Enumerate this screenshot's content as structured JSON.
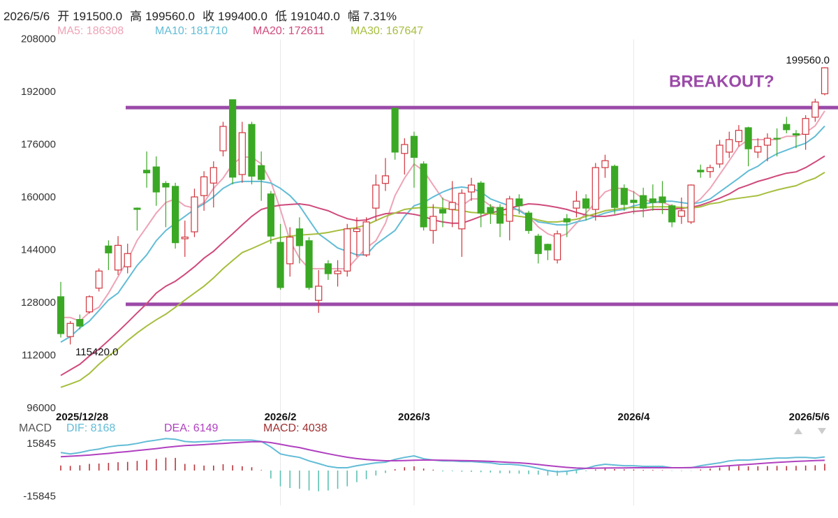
{
  "header": {
    "date": "2026/5/6",
    "items": [
      {
        "label": "开",
        "value": "191500.0"
      },
      {
        "label": "高",
        "value": "199560.0"
      },
      {
        "label": "收",
        "value": "199400.0"
      },
      {
        "label": "低",
        "value": "191040.0"
      },
      {
        "label": "幅",
        "value": "7.31%"
      }
    ]
  },
  "chart_data": [
    {
      "type": "candlestick",
      "categories": [
        "2025/12/28",
        null,
        null,
        null,
        null,
        null,
        null,
        null,
        null,
        null,
        null,
        null,
        null,
        null,
        null,
        null,
        null,
        null,
        null,
        null,
        null,
        null,
        null,
        "2026/2",
        null,
        null,
        null,
        null,
        null,
        null,
        null,
        null,
        null,
        null,
        null,
        null,
        null,
        "2026/3",
        null,
        null,
        null,
        null,
        null,
        null,
        null,
        null,
        null,
        null,
        null,
        null,
        null,
        null,
        null,
        null,
        null,
        null,
        null,
        null,
        null,
        null,
        "2026/4",
        null,
        null,
        null,
        null,
        null,
        null,
        null,
        null,
        null,
        null,
        null,
        null,
        null,
        null,
        null,
        null,
        null,
        null,
        null,
        "2026/5/6"
      ],
      "open": [
        129900,
        117800,
        123000,
        125300,
        132500,
        145300,
        138000,
        139000,
        156800,
        168300,
        169300,
        164300,
        163400,
        147500,
        149600,
        160600,
        164400,
        174200,
        189700,
        167000,
        182200,
        169700,
        161100,
        146400,
        139900,
        150500,
        146900,
        128800,
        139900,
        136900,
        137700,
        149700,
        142600,
        156800,
        164300,
        187100,
        173400,
        178600,
        170200,
        150000,
        156400,
        156400,
        150500,
        161700,
        164400,
        157000,
        157000,
        152800,
        159600,
        155300,
        148300,
        145800,
        141100,
        153600,
        156800,
        159600,
        156400,
        169100,
        169500,
        162800,
        159200,
        160600,
        159600,
        160200,
        157500,
        154300,
        152600,
        168300,
        167900,
        170200,
        173800,
        177000,
        181200,
        173800,
        175900,
        178000,
        182200,
        179400,
        179200,
        184400,
        191500
      ],
      "high": [
        134400,
        122500,
        124500,
        130300,
        138500,
        147000,
        148300,
        146000,
        157000,
        174000,
        172500,
        165000,
        164500,
        153000,
        162700,
        168000,
        171000,
        183000,
        189800,
        183000,
        183000,
        174000,
        162000,
        152000,
        151000,
        154000,
        148000,
        138000,
        141000,
        141000,
        152000,
        154000,
        154000,
        167000,
        172000,
        187300,
        178000,
        180000,
        171000,
        158000,
        160000,
        165000,
        162500,
        166000,
        165000,
        158000,
        158000,
        160500,
        161000,
        156000,
        149000,
        146000,
        150000,
        155000,
        162000,
        161000,
        170500,
        173000,
        170000,
        164000,
        162000,
        163000,
        164000,
        165000,
        158000,
        160000,
        164000,
        170000,
        170000,
        177500,
        180000,
        182000,
        181500,
        178000,
        179500,
        181000,
        184500,
        180500,
        185000,
        190000,
        199560
      ],
      "low": [
        117500,
        115420,
        120000,
        124800,
        131500,
        138000,
        136500,
        137000,
        150000,
        163000,
        157500,
        151000,
        144500,
        142000,
        148000,
        156000,
        157000,
        172500,
        164000,
        164500,
        164000,
        159000,
        146000,
        132000,
        136000,
        140000,
        132000,
        125000,
        135000,
        133000,
        136000,
        142000,
        142000,
        153000,
        162000,
        171500,
        167000,
        163000,
        150000,
        146000,
        151000,
        151000,
        142000,
        159000,
        151000,
        152000,
        148000,
        147000,
        155000,
        149000,
        140000,
        141000,
        140000,
        148000,
        154000,
        153000,
        153000,
        166000,
        155000,
        156000,
        155000,
        154000,
        156000,
        155000,
        151000,
        152000,
        152000,
        166000,
        166000,
        169000,
        172000,
        175500,
        169500,
        172000,
        171000,
        172500,
        179500,
        175000,
        174500,
        183000,
        191040
      ],
      "close": [
        118700,
        121800,
        121000,
        129900,
        137700,
        143200,
        145500,
        143000,
        156400,
        167500,
        161700,
        163200,
        146300,
        148000,
        160200,
        166300,
        169100,
        181600,
        166200,
        179700,
        166500,
        165500,
        148300,
        132700,
        148000,
        145400,
        132700,
        133100,
        136900,
        137700,
        150500,
        150500,
        152600,
        163800,
        166600,
        173800,
        176100,
        172200,
        151100,
        154300,
        155300,
        158500,
        161300,
        163800,
        155300,
        155300,
        152200,
        159600,
        157500,
        150000,
        143000,
        144100,
        149000,
        152600,
        158900,
        156800,
        169100,
        171200,
        157000,
        157900,
        158500,
        156800,
        158500,
        158500,
        152600,
        156000,
        163800,
        167800,
        169100,
        175900,
        177600,
        180400,
        174800,
        175500,
        178000,
        177800,
        180600,
        179000,
        184000,
        189000,
        199400
      ],
      "up_color": "#d0343c",
      "down_color": "#3aa824",
      "ylim": [
        96000,
        208000
      ],
      "yticks": [
        208000,
        192000,
        176000,
        160000,
        144000,
        128000,
        112000,
        96000
      ],
      "xgrid": true,
      "series": [
        {
          "label": "MA5: 186308",
          "color": "#eea3b6",
          "values": [
            123600,
            123600,
            122500,
            125200,
            126700,
            131000,
            136000,
            141000,
            147000,
            151100,
            155300,
            158500,
            159600,
            157500,
            156800,
            158500,
            162800,
            165900,
            170200,
            172300,
            172300,
            170200,
            164900,
            156400,
            146900,
            141600,
            138400,
            138400,
            138400,
            138400,
            138400,
            141600,
            144700,
            146900,
            152200,
            160600,
            165900,
            170200,
            168100,
            163800,
            159600,
            158500,
            157500,
            159600,
            159600,
            157500,
            156400,
            156400,
            156400,
            154300,
            151100,
            149000,
            147900,
            149000,
            152200,
            155300,
            158500,
            161700,
            162800,
            162800,
            161700,
            159600,
            158500,
            158500,
            157500,
            156400,
            157500,
            159600,
            162800,
            167000,
            171200,
            175500,
            177600,
            177600,
            177600,
            177600,
            178600,
            178600,
            179700,
            181800,
            186308
          ]
        },
        {
          "label": "MA10: 181710",
          "color": "#62bcd6",
          "values": [
            116100,
            117800,
            120400,
            122500,
            125700,
            128900,
            131000,
            135200,
            139400,
            142600,
            146900,
            150000,
            152200,
            154300,
            156400,
            158100,
            160200,
            162800,
            164400,
            164900,
            164900,
            164900,
            164400,
            162800,
            160600,
            157500,
            153200,
            149000,
            146900,
            144700,
            143700,
            142600,
            142600,
            145800,
            147900,
            150000,
            154300,
            157500,
            158500,
            160200,
            161700,
            162800,
            163200,
            162800,
            161700,
            159600,
            158500,
            157500,
            156000,
            154300,
            152600,
            152200,
            151700,
            151700,
            152600,
            153200,
            154300,
            155300,
            156000,
            156400,
            157500,
            158100,
            158500,
            158900,
            158900,
            158500,
            158100,
            158500,
            159600,
            161700,
            163800,
            165900,
            168100,
            169500,
            171700,
            173300,
            174400,
            175500,
            176500,
            178600,
            181710
          ]
        },
        {
          "label": "MA20: 172611",
          "color": "#cf4a7c",
          "values": [
            106000,
            107700,
            109400,
            111900,
            114000,
            116600,
            119300,
            122100,
            125000,
            127800,
            131000,
            133100,
            134600,
            136700,
            139000,
            141600,
            143700,
            146400,
            149000,
            151700,
            154300,
            156400,
            157200,
            157700,
            157900,
            158100,
            157700,
            156800,
            156000,
            154700,
            153600,
            153000,
            153200,
            154300,
            155100,
            155300,
            155300,
            154900,
            154300,
            153200,
            152600,
            152200,
            152200,
            153200,
            154300,
            155300,
            156000,
            156800,
            157500,
            158100,
            157900,
            157500,
            157000,
            156400,
            155500,
            154700,
            154300,
            154300,
            154700,
            155300,
            155800,
            156000,
            156400,
            156400,
            156400,
            156800,
            157000,
            157700,
            158700,
            159800,
            161100,
            162800,
            163800,
            164900,
            165700,
            166600,
            167400,
            167800,
            169100,
            170800,
            172611
          ]
        },
        {
          "label": "MA30: 167647",
          "color": "#a6be3e",
          "values": [
            102400,
            103400,
            104500,
            106600,
            109400,
            111900,
            114000,
            116600,
            118900,
            121000,
            122900,
            124600,
            126700,
            128900,
            131000,
            133100,
            135600,
            138400,
            140900,
            143300,
            144500,
            145800,
            147100,
            147900,
            148300,
            148600,
            148800,
            149000,
            149400,
            150000,
            150500,
            150900,
            151700,
            153000,
            154300,
            155300,
            156400,
            156800,
            157000,
            157000,
            156800,
            156400,
            156000,
            155500,
            155300,
            155100,
            154900,
            154700,
            154300,
            153900,
            153200,
            152600,
            152600,
            153000,
            153400,
            154300,
            155100,
            156000,
            156400,
            156800,
            157000,
            157000,
            157200,
            157200,
            157200,
            157000,
            156800,
            157200,
            158100,
            158500,
            159400,
            159800,
            160200,
            160600,
            161500,
            162300,
            163000,
            163600,
            164900,
            165900,
            167647
          ]
        }
      ],
      "hlines": [
        {
          "value": 187300,
          "color": "#9b4aa8"
        },
        {
          "value": 127600,
          "color": "#9b4aa8"
        }
      ],
      "annotations": [
        "BREAKOUT?",
        "199560.0",
        "115420.0"
      ]
    },
    {
      "type": "macd",
      "title": "MACD",
      "ylim": [
        -21000,
        21000
      ],
      "yticks": [
        15845,
        -15845
      ],
      "series": [
        {
          "label": "DIF: 8168",
          "color": "#62bcd6",
          "values": [
            10800,
            10000,
            10800,
            12100,
            12900,
            14200,
            15000,
            15400,
            16300,
            17500,
            18300,
            19200,
            18800,
            17500,
            17100,
            17500,
            17500,
            18300,
            18300,
            18300,
            18300,
            17500,
            14200,
            10000,
            8800,
            7900,
            5800,
            4200,
            2500,
            1700,
            1700,
            2900,
            3800,
            4600,
            5000,
            6700,
            7900,
            8800,
            7100,
            6300,
            5800,
            5800,
            5400,
            5400,
            5000,
            4600,
            3800,
            3800,
            3300,
            2500,
            1300,
            0,
            -800,
            -400,
            400,
            1300,
            2900,
            3800,
            3300,
            2900,
            2900,
            2500,
            2500,
            2500,
            1700,
            1700,
            1700,
            2900,
            3800,
            4600,
            5800,
            6300,
            6300,
            6700,
            7100,
            7500,
            7500,
            7900,
            7900,
            7500,
            8168
          ]
        },
        {
          "label": "DEA: 6149",
          "color": "#b040c0",
          "values": [
            8300,
            8600,
            8900,
            9300,
            9800,
            10300,
            10900,
            11400,
            12000,
            12600,
            13200,
            13900,
            14500,
            15000,
            15300,
            15600,
            16000,
            16300,
            16700,
            17000,
            17300,
            17400,
            16800,
            15800,
            14700,
            13800,
            12500,
            11300,
            10100,
            9000,
            8000,
            7200,
            6600,
            6200,
            5900,
            5900,
            6000,
            6200,
            6300,
            6300,
            6200,
            6100,
            6000,
            5900,
            5700,
            5500,
            5200,
            4900,
            4600,
            4200,
            3600,
            3000,
            2400,
            1900,
            1500,
            1300,
            1400,
            1500,
            1600,
            1600,
            1700,
            1700,
            1700,
            1700,
            1700,
            1700,
            1800,
            1900,
            2100,
            2500,
            2900,
            3300,
            3700,
            4100,
            4500,
            4900,
            5200,
            5500,
            5700,
            6000,
            6149
          ]
        }
      ],
      "histogram": {
        "label": "MACD: 4038",
        "color": "#a03030",
        "up_color": "#b8343a",
        "down_color": "#5cc0b2",
        "values": [
          3000,
          2800,
          3200,
          4000,
          4200,
          4600,
          5000,
          5200,
          5800,
          6500,
          7000,
          7800,
          7600,
          4000,
          3600,
          3000,
          3000,
          3800,
          3200,
          2600,
          2000,
          300,
          -4800,
          -9500,
          -10500,
          -11000,
          -12000,
          -12500,
          -12000,
          -11000,
          -9500,
          -7000,
          -5200,
          -3000,
          -1500,
          800,
          2000,
          2500,
          1200,
          500,
          -500,
          -400,
          -700,
          -800,
          -1000,
          -1200,
          -1600,
          -1700,
          -1900,
          -2200,
          -2500,
          -3000,
          -3200,
          -2700,
          -1800,
          -400,
          600,
          1200,
          900,
          700,
          600,
          400,
          400,
          300,
          -200,
          -300,
          -200,
          600,
          1200,
          1800,
          2500,
          2800,
          2500,
          2600,
          2700,
          2800,
          2700,
          2800,
          3000,
          3200,
          4038
        ]
      }
    }
  ]
}
